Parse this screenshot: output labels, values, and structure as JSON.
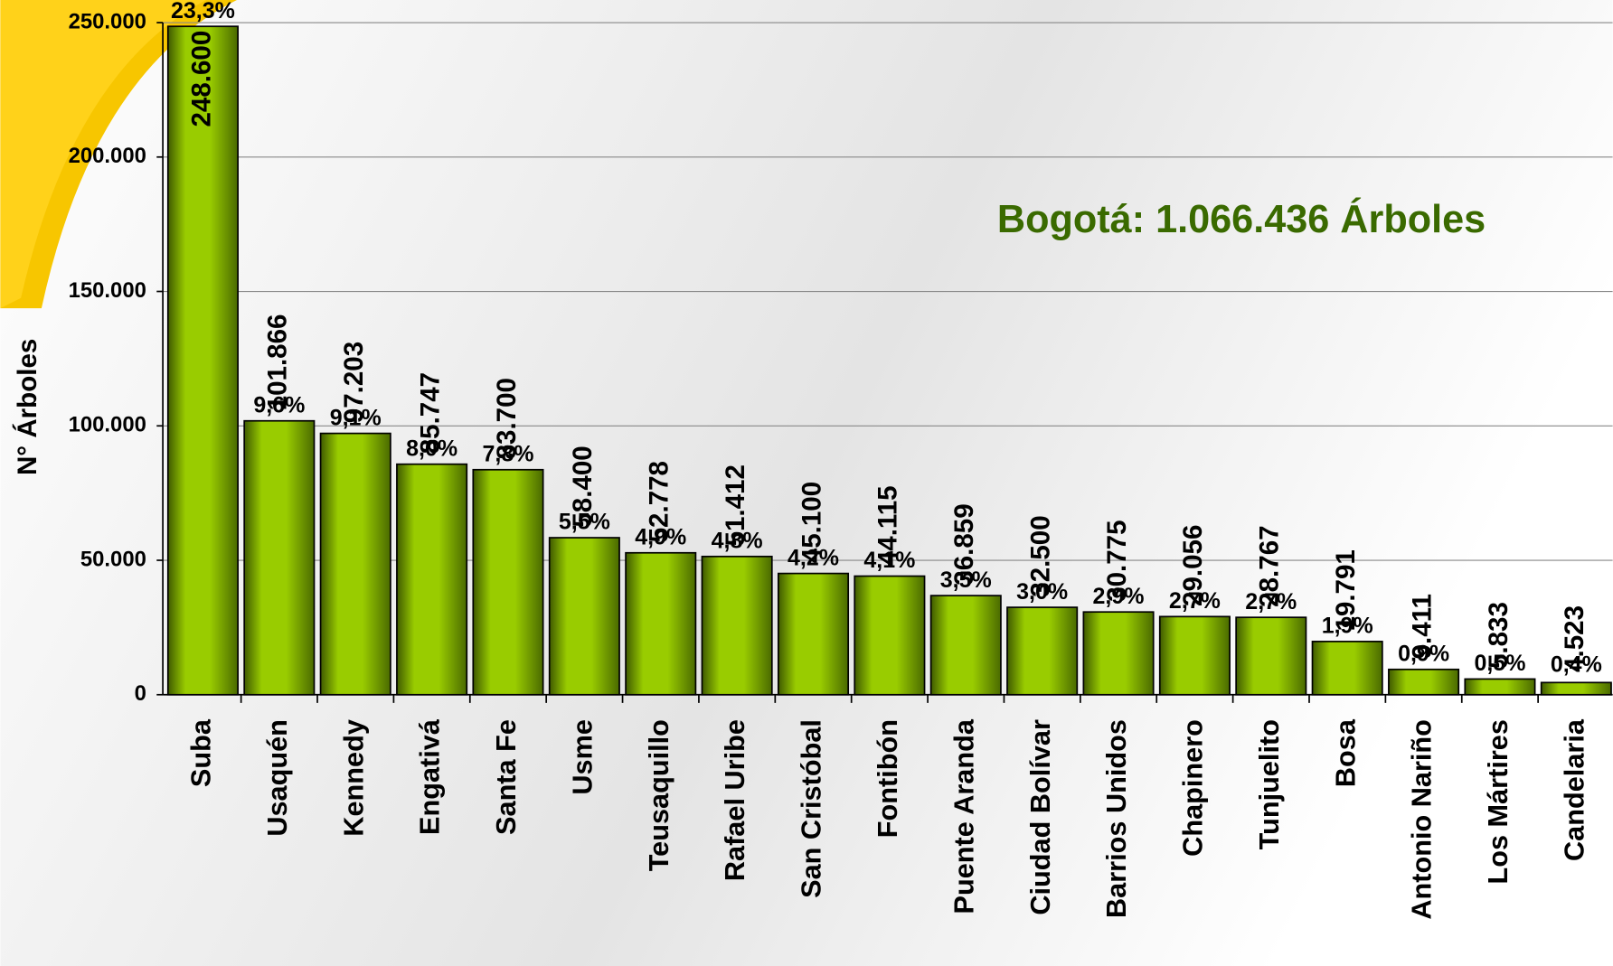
{
  "chart_data": {
    "type": "bar",
    "annotation": "Bogotá: 1.066.436 Árboles",
    "y_label": "N° Árboles",
    "categories": [
      "Suba",
      "Usaquén",
      "Kennedy",
      "Engativá",
      "Santa Fe",
      "Usme",
      "Teusaquillo",
      "Rafael Uribe",
      "San Cristóbal",
      "Fontibón",
      "Puente Aranda",
      "Ciudad Bolívar",
      "Barrios Unidos",
      "Chapinero",
      "Tunjuelito",
      "Bosa",
      "Antonio Nariño",
      "Los Mártires",
      "Candelaria"
    ],
    "values": [
      248600,
      101866,
      97203,
      85747,
      83700,
      58400,
      52778,
      51412,
      45100,
      44115,
      36859,
      32500,
      30775,
      29056,
      28767,
      19791,
      9411,
      5833,
      4523
    ],
    "value_labels": [
      "248.600",
      "101.866",
      "97.203",
      "85.747",
      "83.700",
      "58.400",
      "52.778",
      "51.412",
      "45.100",
      "44.115",
      "36.859",
      "32.500",
      "30.775",
      "29.056",
      "28.767",
      "19.791",
      "9.411",
      "5.833",
      "4.523"
    ],
    "shares": [
      23.3,
      9.6,
      9.1,
      8.0,
      7.8,
      5.5,
      4.9,
      4.8,
      4.2,
      4.1,
      3.5,
      3.0,
      2.9,
      2.7,
      2.7,
      1.9,
      0.9,
      0.5,
      0.4
    ],
    "share_labels": [
      "23,3%",
      "9,6%",
      "9,1%",
      "8,0%",
      "7,8%",
      "5,5%",
      "4,9%",
      "4,8%",
      "4,2%",
      "4,1%",
      "3,5%",
      "3,0%",
      "2,9%",
      "2,7%",
      "2,7%",
      "1,9%",
      "0,9%",
      "0,5%",
      "0,4%"
    ],
    "color": "#99cc00",
    "ylim": [
      0,
      250000
    ],
    "yticks": [
      0,
      {
        "value": 50000,
        "label": "50.000"
      },
      {
        "value": 100000,
        "label": "100.000"
      },
      {
        "value": 150000,
        "label": "150.000"
      },
      {
        "value": 200000,
        "label": "200.000"
      },
      {
        "value": 250000,
        "label": "250.000"
      }
    ],
    "grid": true
  }
}
